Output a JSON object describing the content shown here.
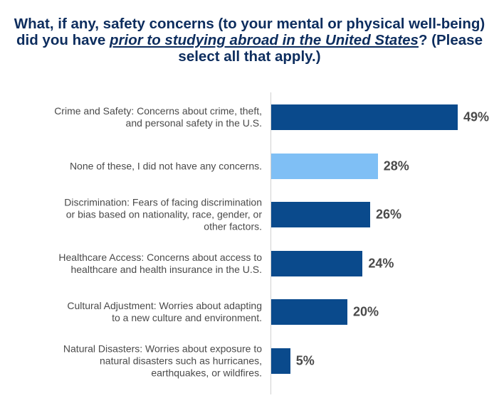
{
  "title": {
    "part1": "What, if any, safety concerns (to your mental or physical well-being) did you have ",
    "emphasis": "prior to studying abroad in the United States",
    "part2": "? (Please select all that apply.)"
  },
  "chart_data": {
    "type": "bar",
    "orientation": "horizontal",
    "categories": [
      "Crime and Safety: Concerns about crime, theft, and personal safety in the U.S.",
      "None of these, I did not have any concerns.",
      "Discrimination: Fears of facing discrimination or bias based on nationality, race, gender, or other factors.",
      "Healthcare Access: Concerns about access to healthcare and health insurance in the U.S.",
      "Cultural Adjustment: Worries about adapting to a new culture and environment.",
      "Natural Disasters: Worries about exposure to natural disasters such as hurricanes, earthquakes, or wildfires."
    ],
    "values": [
      49,
      28,
      26,
      24,
      20,
      5
    ],
    "value_labels": [
      "49%",
      "28%",
      "26%",
      "24%",
      "20%",
      "5%"
    ],
    "colors": [
      "#0a4a8c",
      "#7fbff5",
      "#0a4a8c",
      "#0a4a8c",
      "#0a4a8c",
      "#0a4a8c"
    ],
    "xlim": [
      0,
      49
    ],
    "grid": false,
    "legend": "none"
  }
}
